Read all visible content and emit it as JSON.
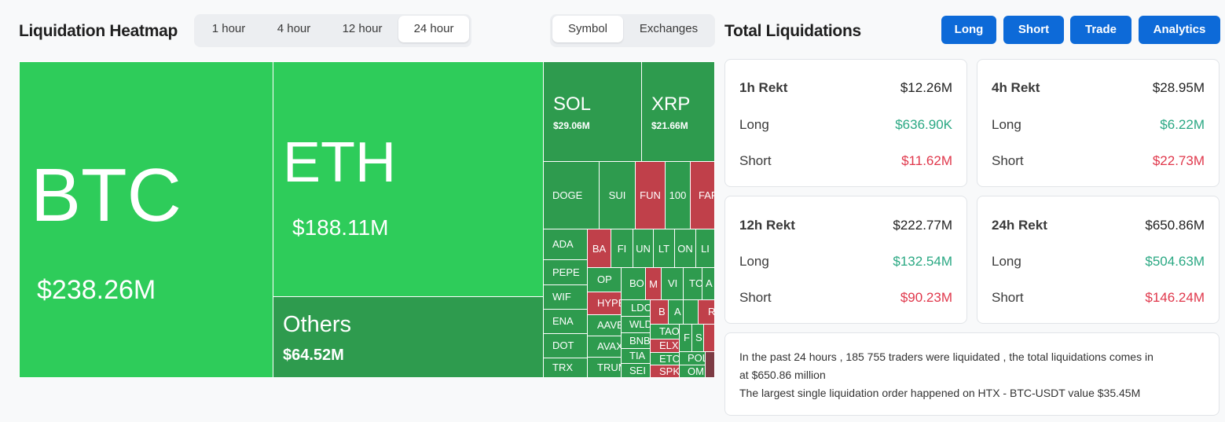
{
  "heatmap": {
    "title": "Liquidation Heatmap",
    "timeframes": [
      "1 hour",
      "4 hour",
      "12 hour",
      "24 hour"
    ],
    "active_timeframe": "24 hour",
    "views": [
      "Symbol",
      "Exchanges"
    ],
    "active_view": "Symbol",
    "tiles": {
      "btc": {
        "symbol": "BTC",
        "value": "$238.26M"
      },
      "eth": {
        "symbol": "ETH",
        "value": "$188.11M"
      },
      "others": {
        "symbol": "Others",
        "value": "$64.52M"
      },
      "sol": {
        "symbol": "SOL",
        "value": "$29.06M"
      },
      "xrp": {
        "symbol": "XRP",
        "value": "$21.66M"
      },
      "doge": "DOGE",
      "sui": "SUI",
      "fun": "FUN",
      "k100": "100",
      "far": "FAR",
      "ada": "ADA",
      "ba": "BA",
      "fi": "FI",
      "un": "UN",
      "lt": "LT",
      "on": "ON",
      "li": "LI",
      "pepe": "PEPE",
      "op": "OP",
      "bo": "BO",
      "mv": "M",
      "vi": "VI",
      "tc": "TC",
      "av": "A",
      "wif": "WIF",
      "hype": "HYPE",
      "ldo": "LDO",
      "b": "B",
      "a2": "A",
      "r": "R",
      "ena": "ENA",
      "aave": "AAVE",
      "wld": "WLD",
      "tao": "TAO",
      "f": "F",
      "s": "S",
      "dot": "DOT",
      "avax": "AVAX",
      "bnb": "BNB",
      "elx": "ELX",
      "tia": "TIA",
      "etc": "ETC",
      "pol": "POL",
      "trx": "TRX",
      "trump": "TRUM",
      "sei": "SEI",
      "spk": "SPK",
      "om": "OM"
    },
    "colors": {
      "up_bright": "#2ecc5a",
      "up_dark": "#2e9b4e",
      "down": "#c0404a"
    }
  },
  "totals": {
    "title": "Total Liquidations",
    "buttons": [
      "Long",
      "Short",
      "Trade",
      "Analytics"
    ],
    "cards": [
      {
        "period": "1h Rekt",
        "total": "$12.26M",
        "long_label": "Long",
        "long": "$636.90K",
        "short_label": "Short",
        "short": "$11.62M"
      },
      {
        "period": "4h Rekt",
        "total": "$28.95M",
        "long_label": "Long",
        "long": "$6.22M",
        "short_label": "Short",
        "short": "$22.73M"
      },
      {
        "period": "12h Rekt",
        "total": "$222.77M",
        "long_label": "Long",
        "long": "$132.54M",
        "short_label": "Short",
        "short": "$90.23M"
      },
      {
        "period": "24h Rekt",
        "total": "$650.86M",
        "long_label": "Long",
        "long": "$504.63M",
        "short_label": "Short",
        "short": "$146.24M"
      }
    ],
    "summary_line1": "In the past 24 hours , 185 755 traders were liquidated , the total liquidations comes in",
    "summary_line2": "at $650.86 million",
    "summary_line3": "The largest single liquidation order happened on HTX - BTC-USDT value $35.45M"
  }
}
